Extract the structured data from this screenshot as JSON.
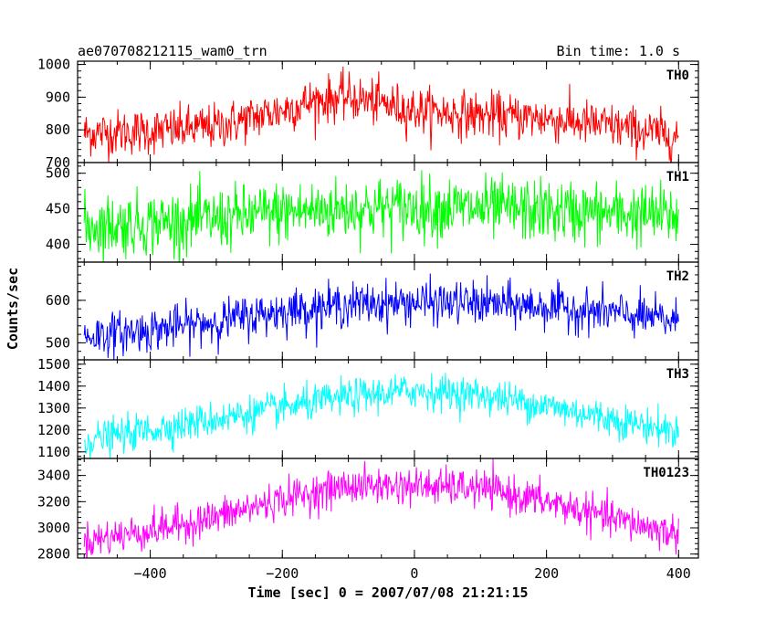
{
  "header": {
    "title": "ae070708212115_wam0_trn",
    "bin_time": "Bin time: 1.0 s"
  },
  "chart_data": {
    "type": "line",
    "title": "ae070708212115_wam0_trn",
    "xlabel": "Time [sec] 0 = 2007/07/08 21:21:15",
    "ylabel": "Counts/sec",
    "xlim": [
      -510,
      430
    ],
    "x_ticks": [
      {
        "value": -400,
        "label": "−400"
      },
      {
        "value": -200,
        "label": "−200"
      },
      {
        "value": 0,
        "label": "0"
      },
      {
        "value": 200,
        "label": "200"
      },
      {
        "value": 400,
        "label": "400"
      }
    ],
    "x_range": [
      -500,
      400
    ],
    "bin_seconds": 1.0,
    "grid": false,
    "panels": [
      {
        "name": "TH0",
        "color": "#ff0000",
        "ylim": [
          700,
          1010
        ],
        "y_ticks": [
          {
            "value": 700,
            "label": "700"
          },
          {
            "value": 800,
            "label": "800"
          },
          {
            "value": 900,
            "label": "900"
          },
          {
            "value": 1000,
            "label": "1000"
          }
        ],
        "trend_x": [
          -500,
          -400,
          -300,
          -200,
          -150,
          -100,
          -50,
          0,
          100,
          200,
          300,
          400
        ],
        "trend_y": [
          790,
          795,
          810,
          860,
          890,
          900,
          880,
          860,
          845,
          835,
          810,
          780
        ],
        "noise": 35
      },
      {
        "name": "TH1",
        "color": "#00ff00",
        "ylim": [
          375,
          515
        ],
        "y_ticks": [
          {
            "value": 400,
            "label": "400"
          },
          {
            "value": 450,
            "label": "450"
          },
          {
            "value": 500,
            "label": "500"
          }
        ],
        "trend_x": [
          -500,
          -300,
          -200,
          -100,
          0,
          100,
          200,
          300,
          400
        ],
        "trend_y": [
          425,
          435,
          445,
          450,
          452,
          450,
          447,
          443,
          440
        ],
        "noise": 22
      },
      {
        "name": "TH2",
        "color": "#0000ff",
        "ylim": [
          460,
          690
        ],
        "y_ticks": [
          {
            "value": 500,
            "label": "500"
          },
          {
            "value": 600,
            "label": "600"
          }
        ],
        "trend_x": [
          -500,
          -400,
          -300,
          -200,
          -100,
          0,
          100,
          200,
          300,
          400
        ],
        "trend_y": [
          515,
          530,
          550,
          575,
          590,
          595,
          592,
          585,
          570,
          550
        ],
        "noise": 25
      },
      {
        "name": "TH3",
        "color": "#00ffff",
        "ylim": [
          1070,
          1520
        ],
        "y_ticks": [
          {
            "value": 1100,
            "label": "1100"
          },
          {
            "value": 1200,
            "label": "1200"
          },
          {
            "value": 1300,
            "label": "1300"
          },
          {
            "value": 1400,
            "label": "1400"
          },
          {
            "value": 1500,
            "label": "1500"
          }
        ],
        "trend_x": [
          -500,
          -400,
          -300,
          -200,
          -100,
          0,
          100,
          200,
          300,
          400
        ],
        "trend_y": [
          1150,
          1200,
          1250,
          1300,
          1350,
          1380,
          1360,
          1310,
          1250,
          1190
        ],
        "noise": 40
      },
      {
        "name": "TH0123",
        "color": "#ff00ff",
        "ylim": [
          2770,
          3530
        ],
        "y_ticks": [
          {
            "value": 2800,
            "label": "2800"
          },
          {
            "value": 3000,
            "label": "3000"
          },
          {
            "value": 3200,
            "label": "3200"
          },
          {
            "value": 3400,
            "label": "3400"
          }
        ],
        "trend_x": [
          -500,
          -400,
          -300,
          -200,
          -100,
          0,
          100,
          200,
          300,
          400
        ],
        "trend_y": [
          2900,
          2980,
          3080,
          3220,
          3320,
          3320,
          3300,
          3200,
          3070,
          2950
        ],
        "noise": 70
      }
    ]
  }
}
